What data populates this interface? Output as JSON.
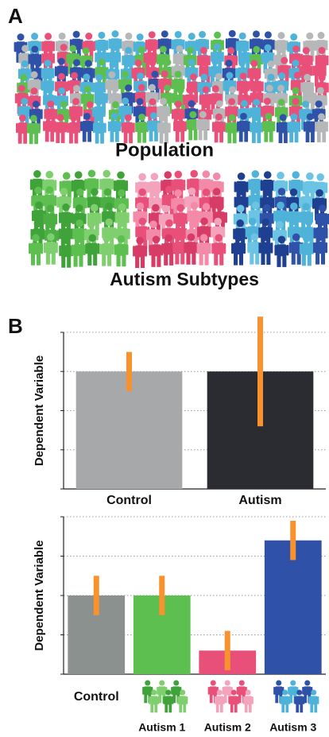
{
  "panel_a": {
    "label": "A",
    "population_label": "Population",
    "subtypes_label": "Autism Subtypes"
  },
  "panel_b": {
    "label": "B"
  },
  "chart_data": [
    {
      "type": "bar",
      "ylabel": "Dependent Variable",
      "categories": [
        "Control",
        "Autism"
      ],
      "values": [
        3,
        3
      ],
      "errors": [
        0.5,
        1.4
      ],
      "colors": [
        "#a7a8aa",
        "#2a2c31"
      ],
      "error_color": "#f7922d",
      "ylim": [
        0,
        4
      ],
      "yticks": [
        0,
        1,
        2,
        3,
        4
      ],
      "grid": true
    },
    {
      "type": "bar",
      "ylabel": "Dependent Variable",
      "categories": [
        "Control",
        "Autism 1",
        "Autism 2",
        "Autism 3"
      ],
      "values": [
        2,
        2,
        0.6,
        3.4
      ],
      "errors": [
        0.5,
        0.5,
        0.5,
        0.5
      ],
      "colors": [
        "#8a918f",
        "#5dbf4f",
        "#e8507a",
        "#2f52a8"
      ],
      "error_color": "#f7922d",
      "ylim": [
        0,
        4
      ],
      "yticks": [
        0,
        1,
        2,
        3,
        4
      ],
      "grid": true
    }
  ]
}
